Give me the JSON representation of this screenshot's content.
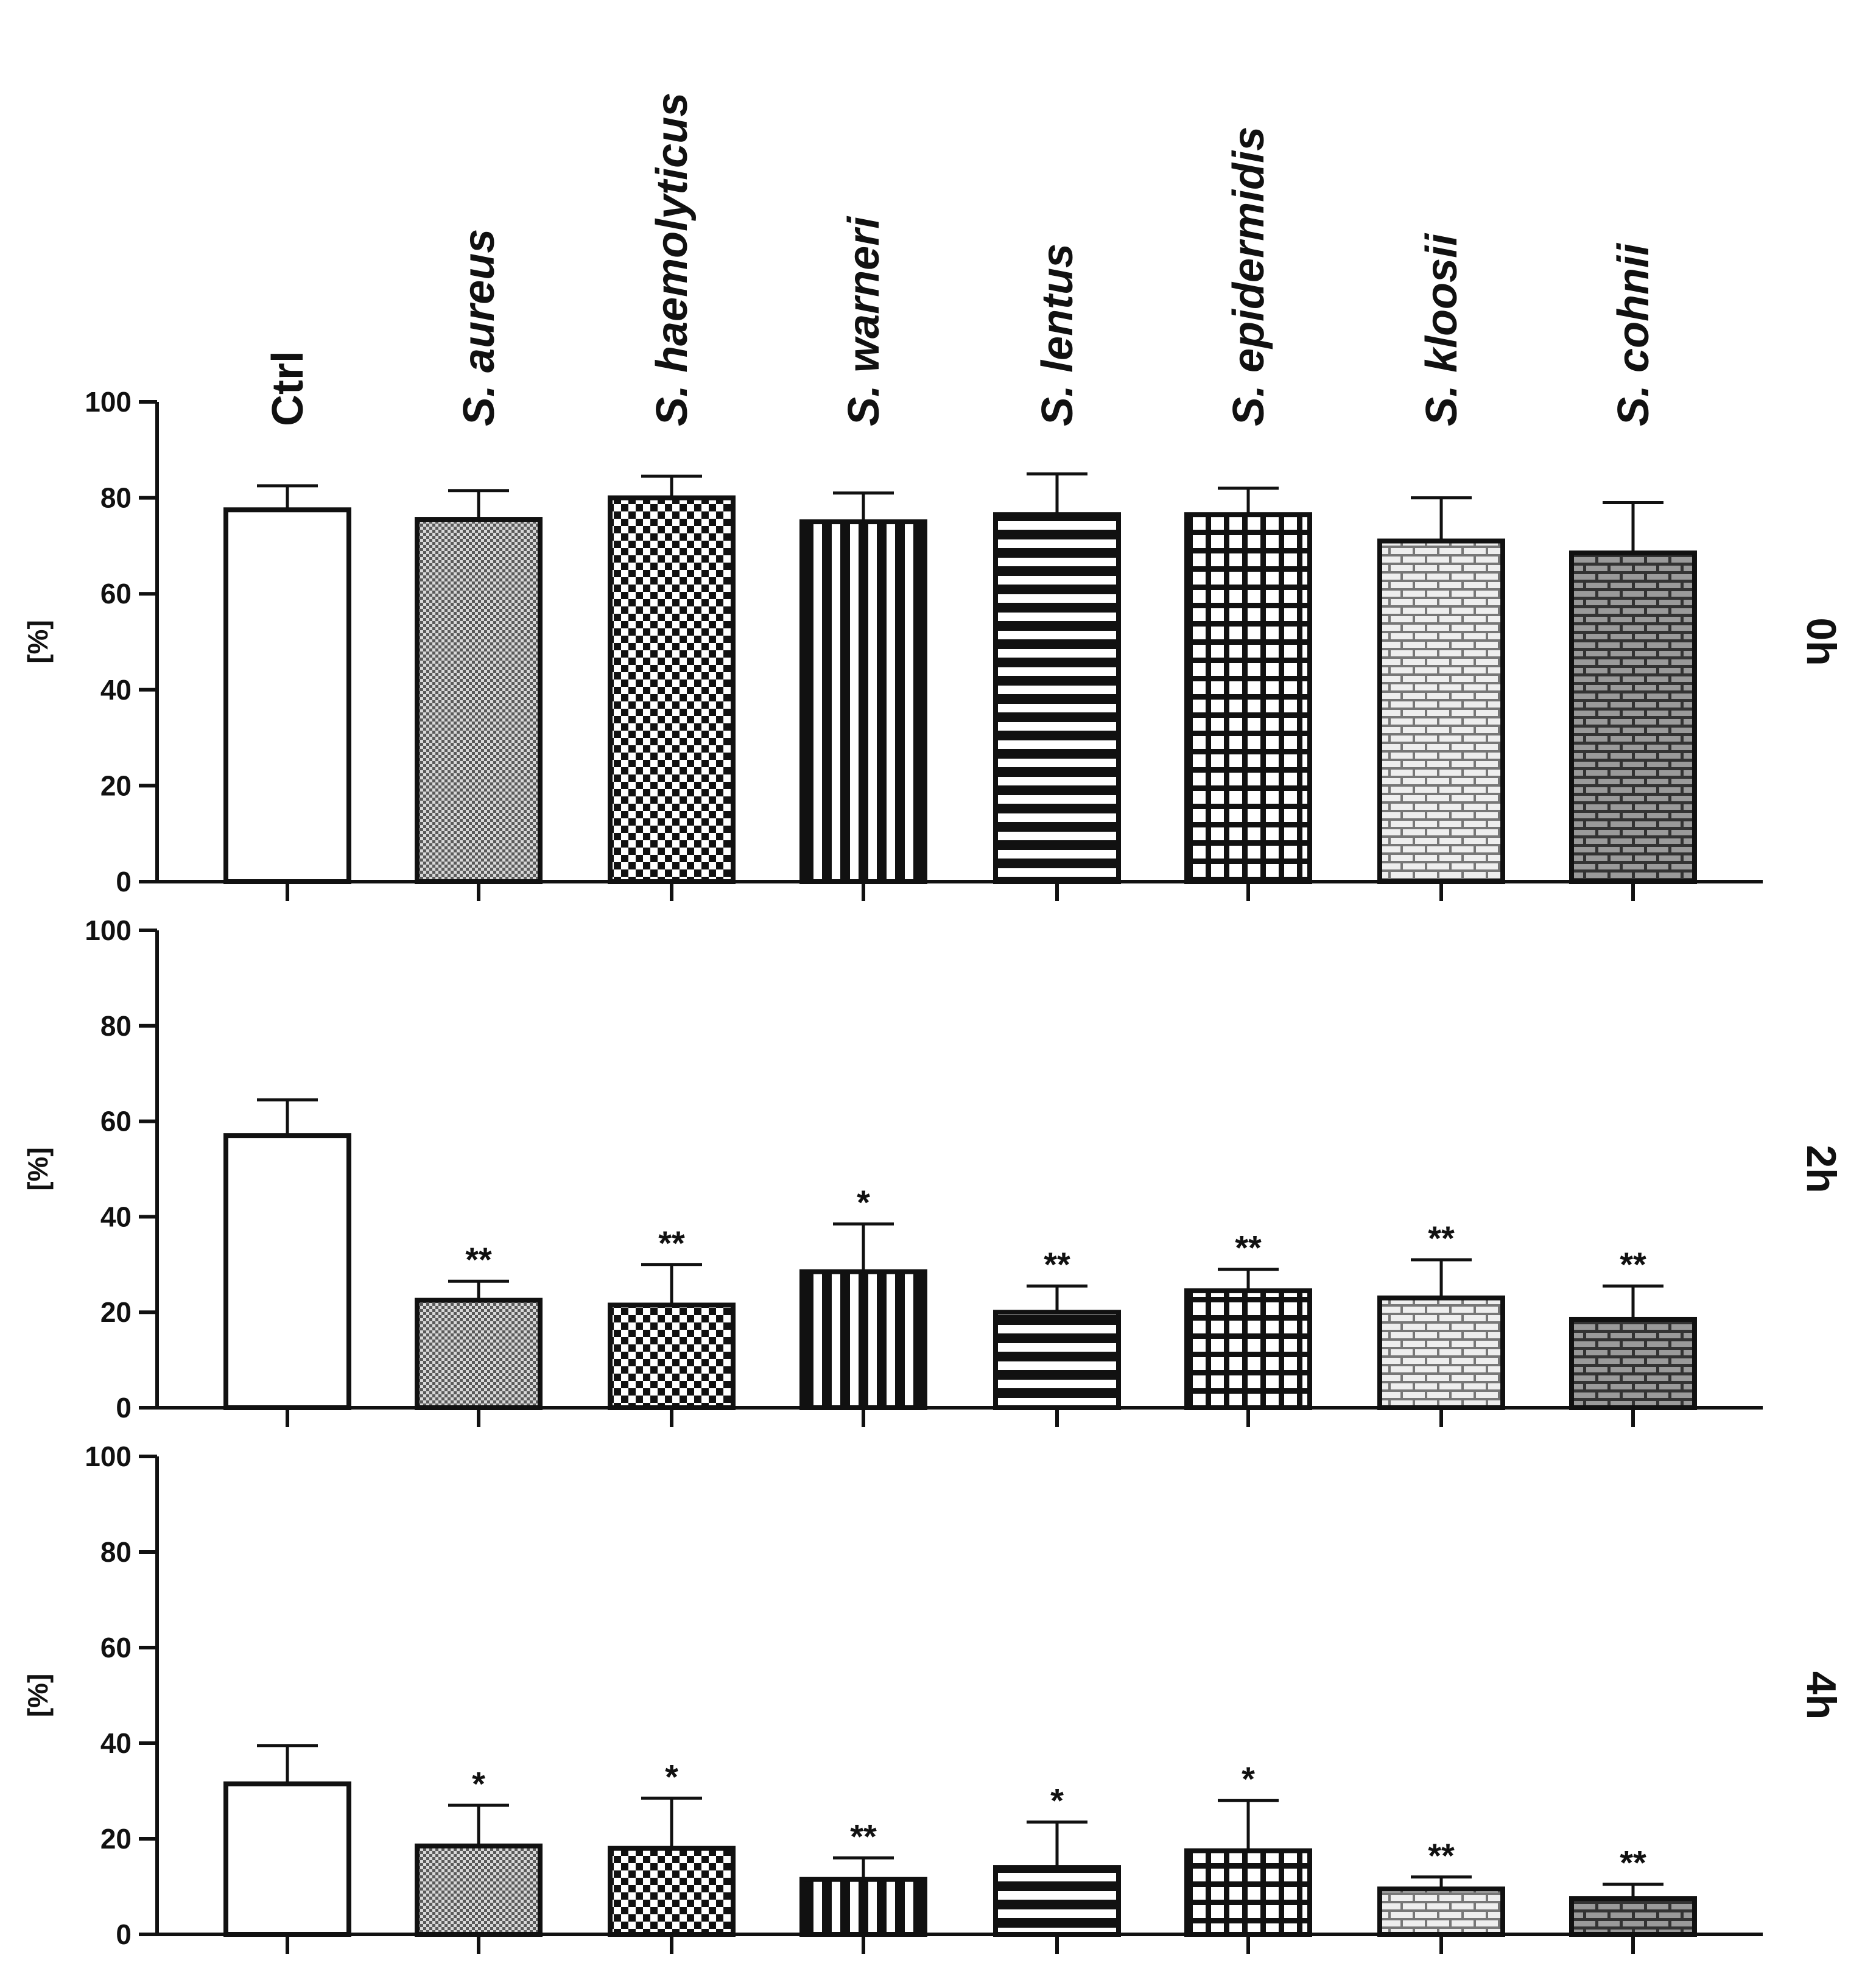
{
  "chart_data": {
    "type": "bar",
    "categories": [
      "Ctrl",
      "S. aureus",
      "S. haemolyticus",
      "S. warneri",
      "S. lentus",
      "S. epidermidis",
      "S. kloosii",
      "S. cohnii"
    ],
    "italic_prefix": "S.",
    "ylabel": "[%]",
    "ylim": [
      0,
      100
    ],
    "yticks": [
      "0",
      "20",
      "40",
      "60",
      "80",
      "100"
    ],
    "error_bars": "upper only",
    "panels": [
      {
        "label": "0h",
        "values": [
          77.5,
          75.5,
          80,
          75,
          76.5,
          76.5,
          71,
          68.5
        ],
        "errors": [
          5,
          6,
          4.5,
          6,
          8.5,
          5.5,
          9,
          10.5
        ],
        "significance": [
          "",
          "",
          "",
          "",
          "",
          "",
          "",
          ""
        ]
      },
      {
        "label": "2h",
        "values": [
          57,
          22.5,
          21.5,
          28.5,
          20,
          24.5,
          23,
          18.5
        ],
        "errors": [
          7.5,
          4,
          8.5,
          10,
          5.5,
          4.5,
          8,
          7
        ],
        "significance": [
          "",
          "**",
          "**",
          "*",
          "**",
          "**",
          "**",
          "**"
        ]
      },
      {
        "label": "4h",
        "values": [
          31.5,
          18.5,
          18,
          11.5,
          14,
          17.5,
          9.5,
          7.5
        ],
        "errors": [
          8,
          8.5,
          10.5,
          4.5,
          9.5,
          10.5,
          2.5,
          3
        ],
        "significance": [
          "",
          "*",
          "*",
          "**",
          "*",
          "*",
          "**",
          "**"
        ]
      }
    ],
    "patterns": [
      "none",
      "fine-dots",
      "checkerboard",
      "vertical-stripes",
      "horizontal-stripes",
      "grid",
      "brick-light",
      "brick-dark"
    ],
    "colors": {
      "axis": "#111111",
      "bar_fill": "#ffffff",
      "bar_stroke": "#111111"
    }
  }
}
